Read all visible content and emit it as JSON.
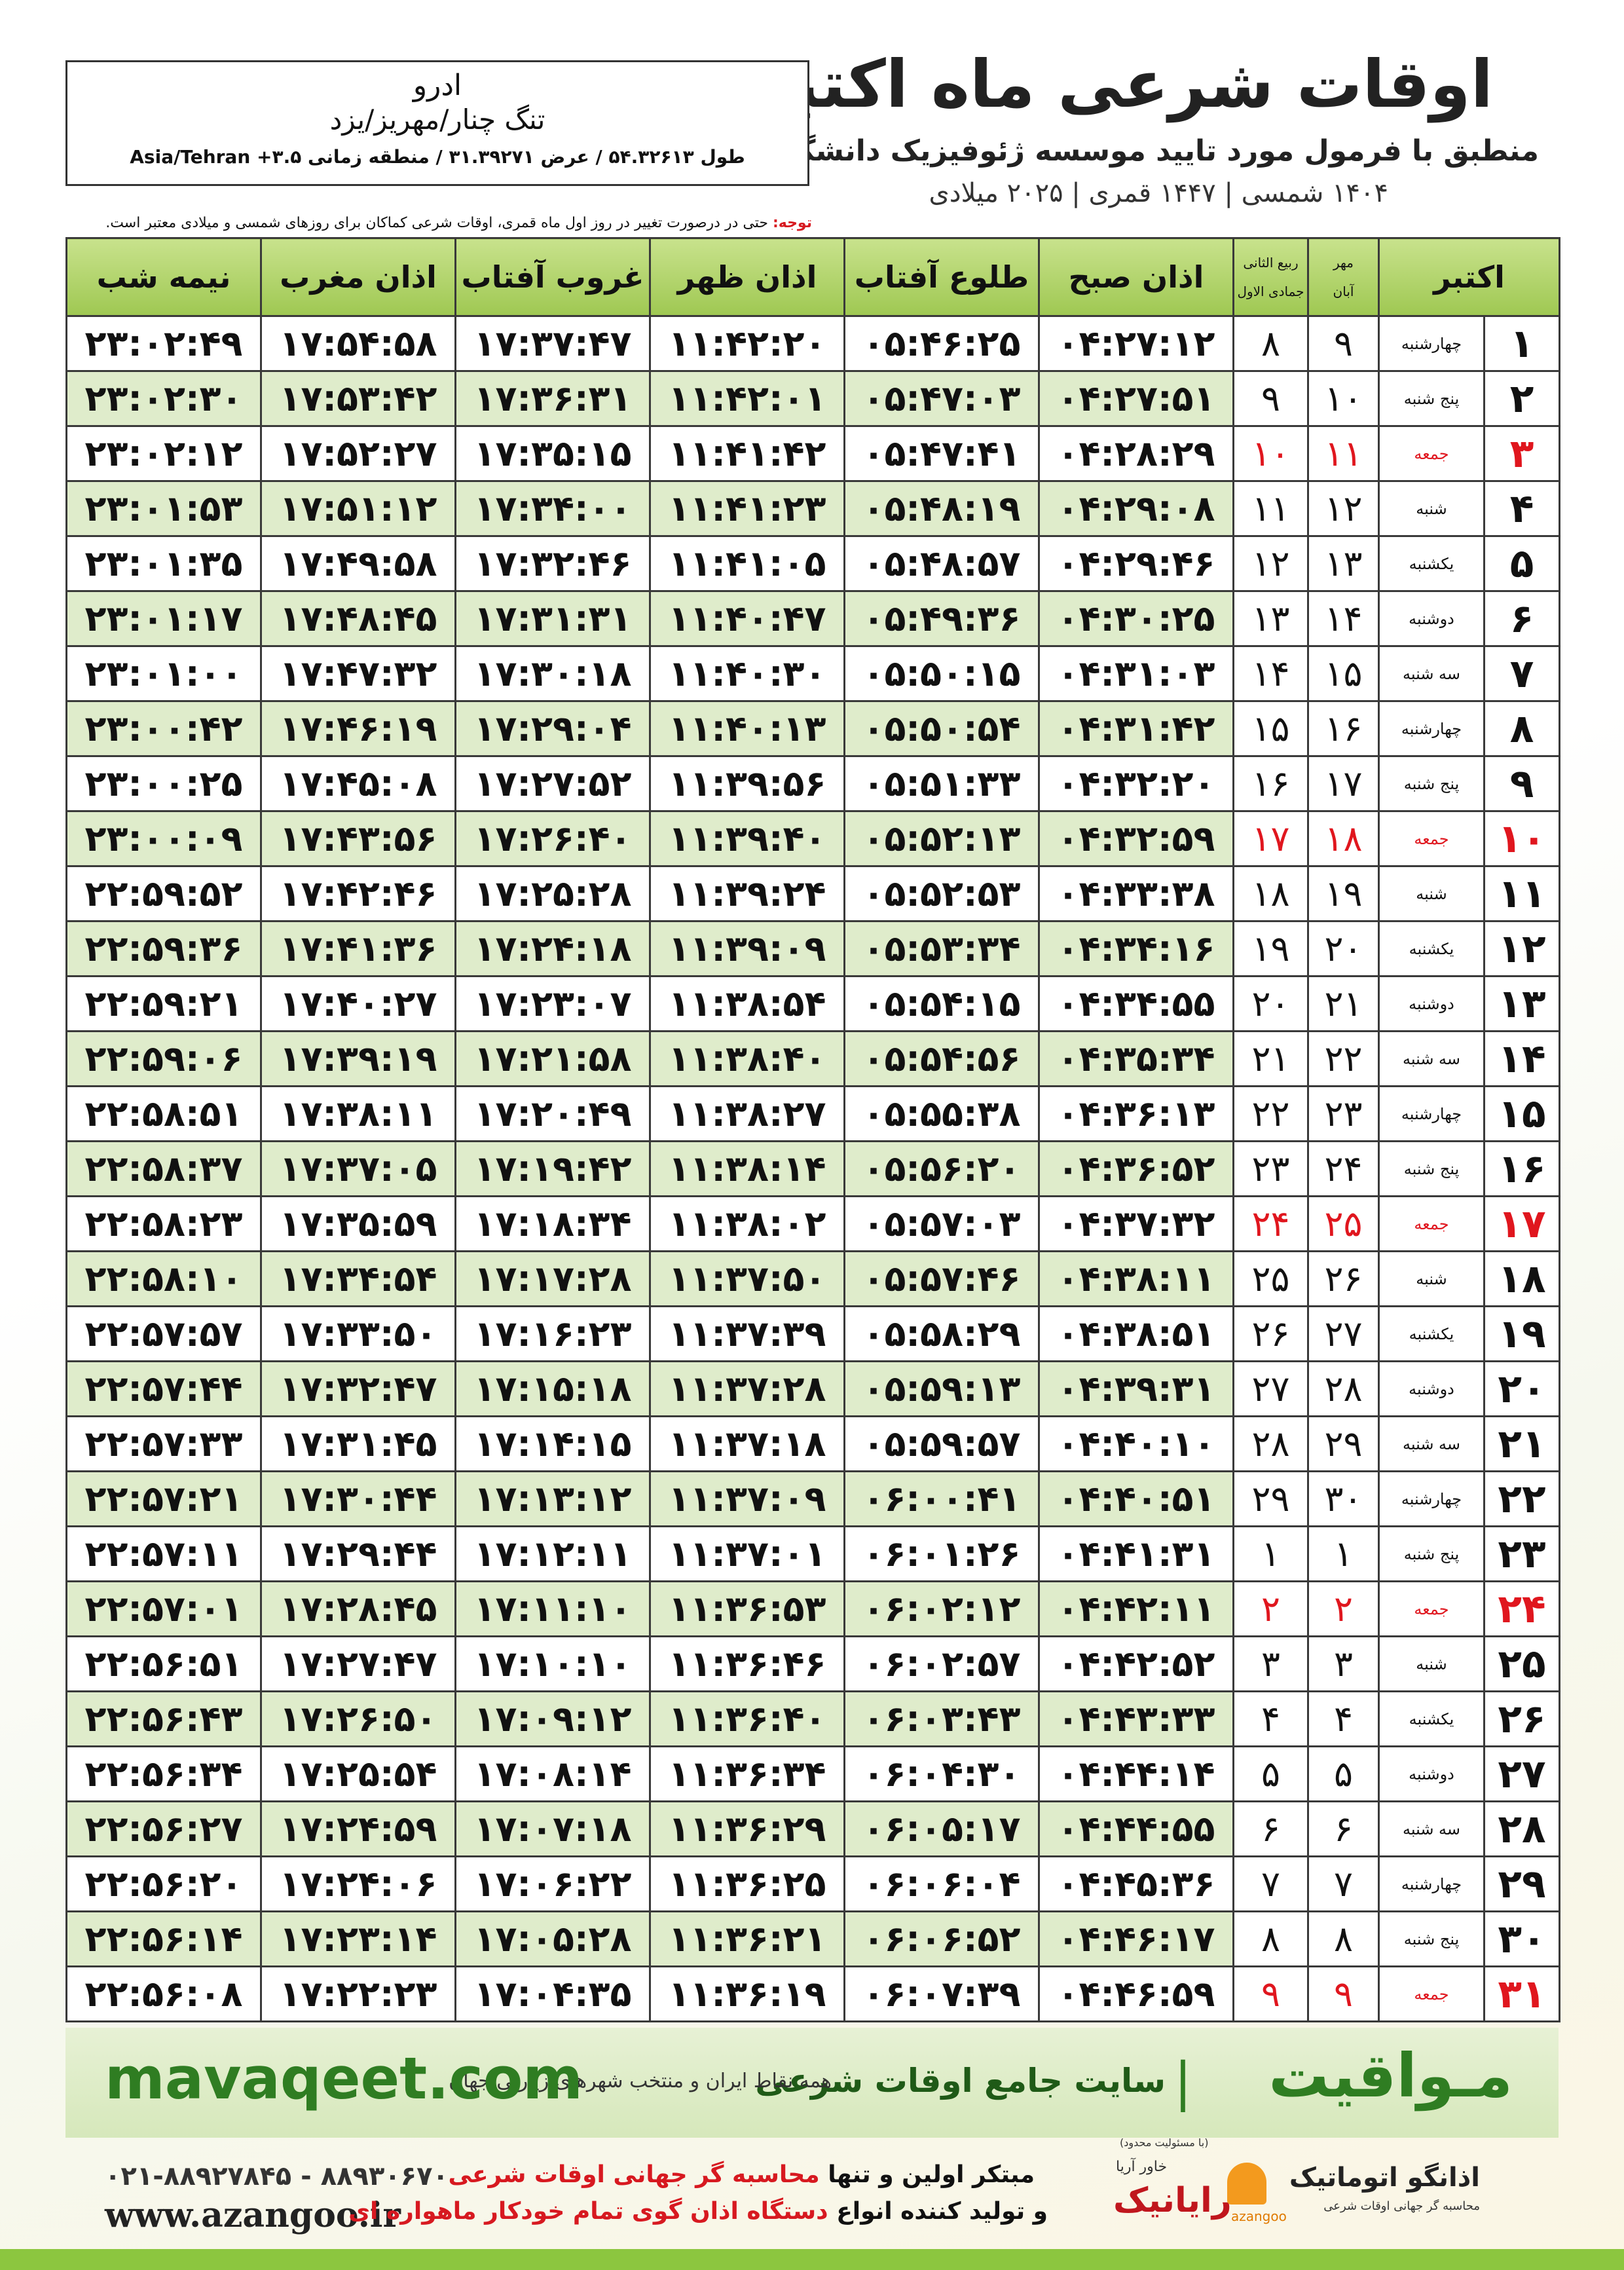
{
  "header": {
    "title": "اوقات شرعی ماه اکتبر",
    "subtitle": "منطبق با فرمول مورد تایید موسسه ژئوفیزیک دانشگاه تهران",
    "dates": "۱۴۰۴ شمسی | ۱۴۴۷ قمری | ۲۰۲۵ میلادی"
  },
  "location": {
    "name": "ادرو",
    "region": "تنگ چنار/مهریز/یزد",
    "coords": "طول ۵۴.۳۲۶۱۳ / عرض ۳۱.۳۹۲۷۱ / منطقه زمانی ۳.۵+ Asia/Tehran"
  },
  "note": {
    "label": "توجه:",
    "text": "حتی در درصورت تغییر در روز اول ماه قمری، اوقات شرعی کماکان برای روزهای شمسی و میلادی معتبر است."
  },
  "table": {
    "header": {
      "day": "اکتبر",
      "solar": [
        "مهر",
        "آبان"
      ],
      "lunar": [
        "ربیع الثانی",
        "جمادی الاول"
      ],
      "times": [
        "اذان صبح",
        "طلوع آفتاب",
        "اذان ظهر",
        "غروب آفتاب",
        "اذان مغرب",
        "نیمه شب"
      ]
    },
    "rows": [
      {
        "cells": [
          "۱",
          "چهارشنبه",
          "۹",
          "۸",
          "۰۴:۲۷:۱۲",
          "۰۵:۴۶:۲۵",
          "۱۱:۴۲:۲۰",
          "۱۷:۳۷:۴۷",
          "۱۷:۵۴:۵۸",
          "۲۳:۰۲:۴۹"
        ]
      },
      {
        "cells": [
          "۲",
          "پنج شنبه",
          "۱۰",
          "۹",
          "۰۴:۲۷:۵۱",
          "۰۵:۴۷:۰۳",
          "۱۱:۴۲:۰۱",
          "۱۷:۳۶:۳۱",
          "۱۷:۵۳:۴۲",
          "۲۳:۰۲:۳۰"
        ]
      },
      {
        "cells": [
          "۳",
          "جمعه",
          "۱۱",
          "۱۰",
          "۰۴:۲۸:۲۹",
          "۰۵:۴۷:۴۱",
          "۱۱:۴۱:۴۲",
          "۱۷:۳۵:۱۵",
          "۱۷:۵۲:۲۷",
          "۲۳:۰۲:۱۲"
        ],
        "holiday": true
      },
      {
        "cells": [
          "۴",
          "شنبه",
          "۱۲",
          "۱۱",
          "۰۴:۲۹:۰۸",
          "۰۵:۴۸:۱۹",
          "۱۱:۴۱:۲۳",
          "۱۷:۳۴:۰۰",
          "۱۷:۵۱:۱۲",
          "۲۳:۰۱:۵۳"
        ]
      },
      {
        "cells": [
          "۵",
          "یکشنبه",
          "۱۳",
          "۱۲",
          "۰۴:۲۹:۴۶",
          "۰۵:۴۸:۵۷",
          "۱۱:۴۱:۰۵",
          "۱۷:۳۲:۴۶",
          "۱۷:۴۹:۵۸",
          "۲۳:۰۱:۳۵"
        ]
      },
      {
        "cells": [
          "۶",
          "دوشنبه",
          "۱۴",
          "۱۳",
          "۰۴:۳۰:۲۵",
          "۰۵:۴۹:۳۶",
          "۱۱:۴۰:۴۷",
          "۱۷:۳۱:۳۱",
          "۱۷:۴۸:۴۵",
          "۲۳:۰۱:۱۷"
        ]
      },
      {
        "cells": [
          "۷",
          "سه شنبه",
          "۱۵",
          "۱۴",
          "۰۴:۳۱:۰۳",
          "۰۵:۵۰:۱۵",
          "۱۱:۴۰:۳۰",
          "۱۷:۳۰:۱۸",
          "۱۷:۴۷:۳۲",
          "۲۳:۰۱:۰۰"
        ]
      },
      {
        "cells": [
          "۸",
          "چهارشنبه",
          "۱۶",
          "۱۵",
          "۰۴:۳۱:۴۲",
          "۰۵:۵۰:۵۴",
          "۱۱:۴۰:۱۳",
          "۱۷:۲۹:۰۴",
          "۱۷:۴۶:۱۹",
          "۲۳:۰۰:۴۲"
        ]
      },
      {
        "cells": [
          "۹",
          "پنج شنبه",
          "۱۷",
          "۱۶",
          "۰۴:۳۲:۲۰",
          "۰۵:۵۱:۳۳",
          "۱۱:۳۹:۵۶",
          "۱۷:۲۷:۵۲",
          "۱۷:۴۵:۰۸",
          "۲۳:۰۰:۲۵"
        ]
      },
      {
        "cells": [
          "۱۰",
          "جمعه",
          "۱۸",
          "۱۷",
          "۰۴:۳۲:۵۹",
          "۰۵:۵۲:۱۳",
          "۱۱:۳۹:۴۰",
          "۱۷:۲۶:۴۰",
          "۱۷:۴۳:۵۶",
          "۲۳:۰۰:۰۹"
        ],
        "holiday": true
      },
      {
        "cells": [
          "۱۱",
          "شنبه",
          "۱۹",
          "۱۸",
          "۰۴:۳۳:۳۸",
          "۰۵:۵۲:۵۳",
          "۱۱:۳۹:۲۴",
          "۱۷:۲۵:۲۸",
          "۱۷:۴۲:۴۶",
          "۲۲:۵۹:۵۲"
        ]
      },
      {
        "cells": [
          "۱۲",
          "یکشنبه",
          "۲۰",
          "۱۹",
          "۰۴:۳۴:۱۶",
          "۰۵:۵۳:۳۴",
          "۱۱:۳۹:۰۹",
          "۱۷:۲۴:۱۸",
          "۱۷:۴۱:۳۶",
          "۲۲:۵۹:۳۶"
        ]
      },
      {
        "cells": [
          "۱۳",
          "دوشنبه",
          "۲۱",
          "۲۰",
          "۰۴:۳۴:۵۵",
          "۰۵:۵۴:۱۵",
          "۱۱:۳۸:۵۴",
          "۱۷:۲۳:۰۷",
          "۱۷:۴۰:۲۷",
          "۲۲:۵۹:۲۱"
        ]
      },
      {
        "cells": [
          "۱۴",
          "سه شنبه",
          "۲۲",
          "۲۱",
          "۰۴:۳۵:۳۴",
          "۰۵:۵۴:۵۶",
          "۱۱:۳۸:۴۰",
          "۱۷:۲۱:۵۸",
          "۱۷:۳۹:۱۹",
          "۲۲:۵۹:۰۶"
        ]
      },
      {
        "cells": [
          "۱۵",
          "چهارشنبه",
          "۲۳",
          "۲۲",
          "۰۴:۳۶:۱۳",
          "۰۵:۵۵:۳۸",
          "۱۱:۳۸:۲۷",
          "۱۷:۲۰:۴۹",
          "۱۷:۳۸:۱۱",
          "۲۲:۵۸:۵۱"
        ]
      },
      {
        "cells": [
          "۱۶",
          "پنج شنبه",
          "۲۴",
          "۲۳",
          "۰۴:۳۶:۵۲",
          "۰۵:۵۶:۲۰",
          "۱۱:۳۸:۱۴",
          "۱۷:۱۹:۴۲",
          "۱۷:۳۷:۰۵",
          "۲۲:۵۸:۳۷"
        ]
      },
      {
        "cells": [
          "۱۷",
          "جمعه",
          "۲۵",
          "۲۴",
          "۰۴:۳۷:۳۲",
          "۰۵:۵۷:۰۳",
          "۱۱:۳۸:۰۲",
          "۱۷:۱۸:۳۴",
          "۱۷:۳۵:۵۹",
          "۲۲:۵۸:۲۳"
        ],
        "holiday": true
      },
      {
        "cells": [
          "۱۸",
          "شنبه",
          "۲۶",
          "۲۵",
          "۰۴:۳۸:۱۱",
          "۰۵:۵۷:۴۶",
          "۱۱:۳۷:۵۰",
          "۱۷:۱۷:۲۸",
          "۱۷:۳۴:۵۴",
          "۲۲:۵۸:۱۰"
        ]
      },
      {
        "cells": [
          "۱۹",
          "یکشنبه",
          "۲۷",
          "۲۶",
          "۰۴:۳۸:۵۱",
          "۰۵:۵۸:۲۹",
          "۱۱:۳۷:۳۹",
          "۱۷:۱۶:۲۳",
          "۱۷:۳۳:۵۰",
          "۲۲:۵۷:۵۷"
        ]
      },
      {
        "cells": [
          "۲۰",
          "دوشنبه",
          "۲۸",
          "۲۷",
          "۰۴:۳۹:۳۱",
          "۰۵:۵۹:۱۳",
          "۱۱:۳۷:۲۸",
          "۱۷:۱۵:۱۸",
          "۱۷:۳۲:۴۷",
          "۲۲:۵۷:۴۴"
        ]
      },
      {
        "cells": [
          "۲۱",
          "سه شنبه",
          "۲۹",
          "۲۸",
          "۰۴:۴۰:۱۰",
          "۰۵:۵۹:۵۷",
          "۱۱:۳۷:۱۸",
          "۱۷:۱۴:۱۵",
          "۱۷:۳۱:۴۵",
          "۲۲:۵۷:۳۳"
        ]
      },
      {
        "cells": [
          "۲۲",
          "چهارشنبه",
          "۳۰",
          "۲۹",
          "۰۴:۴۰:۵۱",
          "۰۶:۰۰:۴۱",
          "۱۱:۳۷:۰۹",
          "۱۷:۱۳:۱۲",
          "۱۷:۳۰:۴۴",
          "۲۲:۵۷:۲۱"
        ]
      },
      {
        "cells": [
          "۲۳",
          "پنج شنبه",
          "۱",
          "۱",
          "۰۴:۴۱:۳۱",
          "۰۶:۰۱:۲۶",
          "۱۱:۳۷:۰۱",
          "۱۷:۱۲:۱۱",
          "۱۷:۲۹:۴۴",
          "۲۲:۵۷:۱۱"
        ]
      },
      {
        "cells": [
          "۲۴",
          "جمعه",
          "۲",
          "۲",
          "۰۴:۴۲:۱۱",
          "۰۶:۰۲:۱۲",
          "۱۱:۳۶:۵۳",
          "۱۷:۱۱:۱۰",
          "۱۷:۲۸:۴۵",
          "۲۲:۵۷:۰۱"
        ],
        "holiday": true
      },
      {
        "cells": [
          "۲۵",
          "شنبه",
          "۳",
          "۳",
          "۰۴:۴۲:۵۲",
          "۰۶:۰۲:۵۷",
          "۱۱:۳۶:۴۶",
          "۱۷:۱۰:۱۰",
          "۱۷:۲۷:۴۷",
          "۲۲:۵۶:۵۱"
        ]
      },
      {
        "cells": [
          "۲۶",
          "یکشنبه",
          "۴",
          "۴",
          "۰۴:۴۳:۳۳",
          "۰۶:۰۳:۴۳",
          "۱۱:۳۶:۴۰",
          "۱۷:۰۹:۱۲",
          "۱۷:۲۶:۵۰",
          "۲۲:۵۶:۴۳"
        ]
      },
      {
        "cells": [
          "۲۷",
          "دوشنبه",
          "۵",
          "۵",
          "۰۴:۴۴:۱۴",
          "۰۶:۰۴:۳۰",
          "۱۱:۳۶:۳۴",
          "۱۷:۰۸:۱۴",
          "۱۷:۲۵:۵۴",
          "۲۲:۵۶:۳۴"
        ]
      },
      {
        "cells": [
          "۲۸",
          "سه شنبه",
          "۶",
          "۶",
          "۰۴:۴۴:۵۵",
          "۰۶:۰۵:۱۷",
          "۱۱:۳۶:۲۹",
          "۱۷:۰۷:۱۸",
          "۱۷:۲۴:۵۹",
          "۲۲:۵۶:۲۷"
        ]
      },
      {
        "cells": [
          "۲۹",
          "چهارشنبه",
          "۷",
          "۷",
          "۰۴:۴۵:۳۶",
          "۰۶:۰۶:۰۴",
          "۱۱:۳۶:۲۵",
          "۱۷:۰۶:۲۲",
          "۱۷:۲۴:۰۶",
          "۲۲:۵۶:۲۰"
        ]
      },
      {
        "cells": [
          "۳۰",
          "پنج شنبه",
          "۸",
          "۸",
          "۰۴:۴۶:۱۷",
          "۰۶:۰۶:۵۲",
          "۱۱:۳۶:۲۱",
          "۱۷:۰۵:۲۸",
          "۱۷:۲۳:۱۴",
          "۲۲:۵۶:۱۴"
        ]
      },
      {
        "cells": [
          "۳۱",
          "جمعه",
          "۹",
          "۹",
          "۰۴:۴۶:۵۹",
          "۰۶:۰۷:۳۹",
          "۱۱:۳۶:۱۹",
          "۱۷:۰۴:۳۵",
          "۱۷:۲۲:۲۳",
          "۲۲:۵۶:۰۸"
        ],
        "holiday": true
      }
    ]
  },
  "banner": {
    "brand": "مـواقیت",
    "tagline": "سایت جامع اوقات شرعی",
    "coverage": "همه نقاط ایران و منتخب شهرهای زیارتی جهان",
    "site": "mavaqeet.com"
  },
  "footer": {
    "phone": "۰۲۱-۸۸۹۲۷۸۴۵ - ۸۸۹۳۰۶۷۰",
    "web": "www.azangoo.ir",
    "line1": [
      "مبتکر اولین و تنها",
      "محاسبه گر جهانی اوقات شرعی"
    ],
    "line2": [
      "و تولید کننده انواع",
      "دستگاه اذان گوی تمام خودکار ماهواره ای"
    ],
    "logo_raianik": "رایانیک",
    "logo_khavar": "خاور آریا",
    "logo_ltd": "(با مسئولیت محدود)",
    "logo_azangoo": "اذانگو اتوماتیک",
    "logo_azangoo_sub": "محاسبه گر جهانی اوقات شرعی",
    "logo_azangoo_en": "azangoo"
  }
}
